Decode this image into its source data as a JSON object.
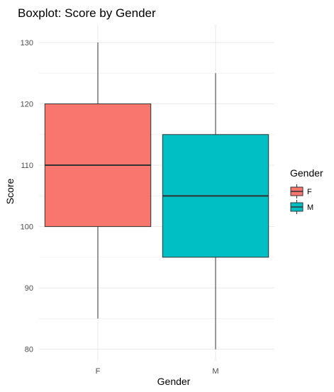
{
  "chart_data": {
    "type": "boxplot",
    "title": "Boxplot: Score by Gender",
    "xlabel": "Gender",
    "ylabel": "Score",
    "categories": [
      "F",
      "M"
    ],
    "ylim": [
      78,
      133
    ],
    "y_ticks": [
      80,
      90,
      100,
      110,
      120,
      130
    ],
    "grid": true,
    "legend": {
      "title": "Gender",
      "placement": "right",
      "entries": [
        "F",
        "M"
      ]
    },
    "colors": {
      "F": "#F8766D",
      "M": "#00BFC4",
      "grid": "#EBEBEB",
      "outline": "#333333"
    },
    "boxes": [
      {
        "name": "F",
        "min": 85,
        "q1": 100,
        "median": 110,
        "q3": 120,
        "max": 130
      },
      {
        "name": "M",
        "min": 80,
        "q1": 95,
        "median": 105,
        "q3": 115,
        "max": 125
      }
    ]
  }
}
